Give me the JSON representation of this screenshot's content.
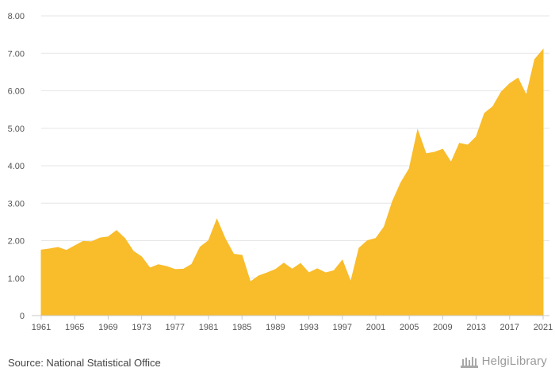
{
  "chart_data": {
    "type": "area",
    "title": "",
    "xlabel": "",
    "ylabel": "",
    "ylim": [
      0,
      8
    ],
    "xlim": [
      1961,
      2021
    ],
    "grid": true,
    "color": "#f9bc2a",
    "ytick_labels": [
      "0",
      "1.00",
      "2.00",
      "3.00",
      "4.00",
      "5.00",
      "6.00",
      "7.00",
      "8.00"
    ],
    "xtick_labels": [
      "1961",
      "1965",
      "1969",
      "1973",
      "1977",
      "1981",
      "1985",
      "1989",
      "1993",
      "1997",
      "2001",
      "2005",
      "2009",
      "2013",
      "2017",
      "2021"
    ],
    "x": [
      1961,
      1962,
      1963,
      1964,
      1965,
      1966,
      1967,
      1968,
      1969,
      1970,
      1971,
      1972,
      1973,
      1974,
      1975,
      1976,
      1977,
      1978,
      1979,
      1980,
      1981,
      1982,
      1983,
      1984,
      1985,
      1986,
      1987,
      1988,
      1989,
      1990,
      1991,
      1992,
      1993,
      1994,
      1995,
      1996,
      1997,
      1998,
      1999,
      2000,
      2001,
      2002,
      2003,
      2004,
      2005,
      2006,
      2007,
      2008,
      2009,
      2010,
      2011,
      2012,
      2013,
      2014,
      2015,
      2016,
      2017,
      2018,
      2019,
      2020,
      2021
    ],
    "series": [
      {
        "values": [
          1.75,
          1.78,
          1.82,
          1.74,
          1.86,
          1.98,
          1.97,
          2.07,
          2.1,
          2.27,
          2.06,
          1.72,
          1.57,
          1.27,
          1.36,
          1.31,
          1.23,
          1.24,
          1.37,
          1.83,
          2.0,
          2.57,
          2.05,
          1.64,
          1.61,
          0.9,
          1.06,
          1.14,
          1.23,
          1.4,
          1.24,
          1.39,
          1.14,
          1.25,
          1.14,
          1.2,
          1.48,
          0.9,
          1.8,
          2.0,
          2.06,
          2.37,
          3.05,
          3.55,
          3.92,
          4.95,
          4.32,
          4.36,
          4.44,
          4.09,
          4.6,
          4.55,
          4.77,
          5.4,
          5.58,
          5.97,
          6.19,
          6.34,
          5.88,
          6.84,
          7.1
        ]
      }
    ]
  },
  "footer": {
    "source": "Source: National Statistical Office",
    "logo_text": "HelgiLibrary"
  }
}
